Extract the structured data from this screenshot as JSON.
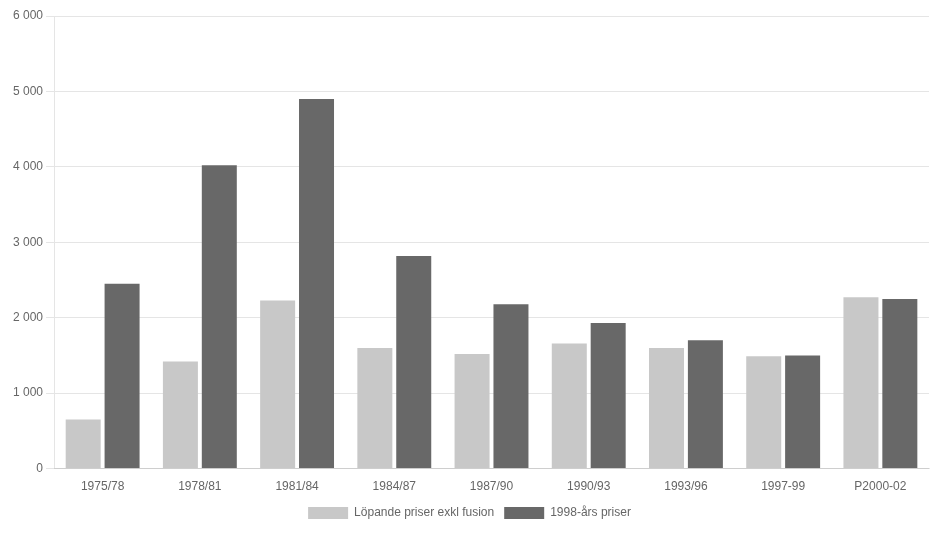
{
  "chart_data": {
    "type": "bar",
    "categories": [
      "1975/78",
      "1978/81",
      "1981/84",
      "1984/87",
      "1987/90",
      "1990/93",
      "1993/96",
      "1997-99",
      "P2000-02"
    ],
    "series": [
      {
        "name": "Löpande priser exkl fusion",
        "color": "#c8c8c8",
        "values": [
          650,
          1420,
          2230,
          1600,
          1520,
          1660,
          1600,
          1490,
          2270
        ]
      },
      {
        "name": "1998-års priser",
        "color": "#686868",
        "values": [
          2450,
          4020,
          4900,
          2820,
          2180,
          1930,
          1700,
          1500,
          2250
        ]
      }
    ],
    "ylim": [
      0,
      6000
    ],
    "yticks": [
      0,
      {
        "value": 1000,
        "label": "1 000"
      },
      {
        "value": 2000,
        "label": "2 000"
      },
      {
        "value": 3000,
        "label": "3 000"
      },
      {
        "value": 4000,
        "label": "4 000"
      },
      {
        "value": 5000,
        "label": "5 000"
      },
      {
        "value": 6000,
        "label": "6 000"
      }
    ],
    "grid": true,
    "legend": "bottom"
  }
}
